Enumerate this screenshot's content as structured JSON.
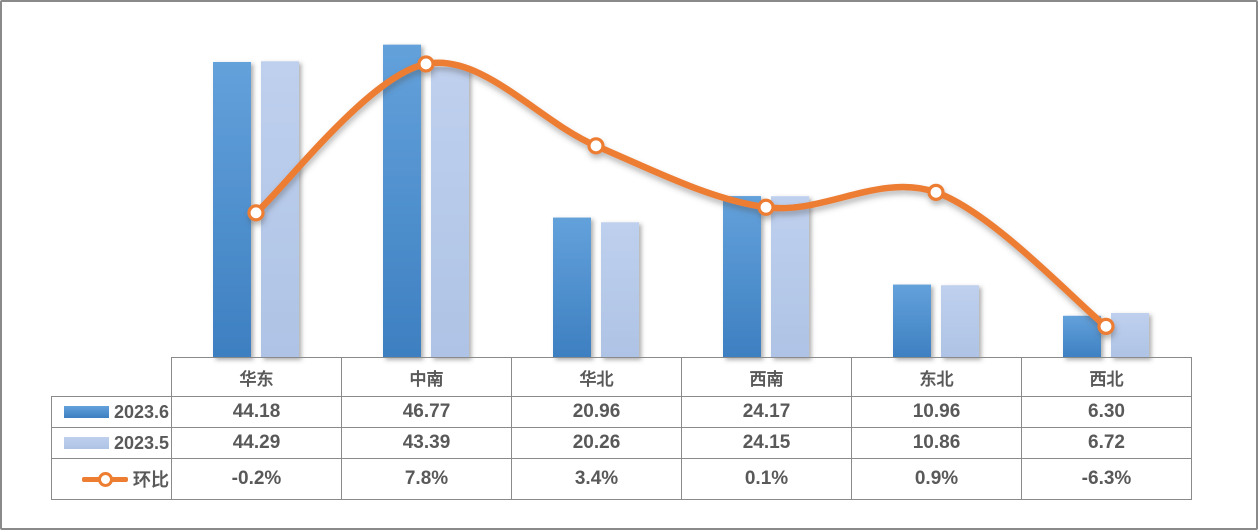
{
  "chart_data": {
    "type": "combo (clustered bar + smooth line, secondary axis)",
    "title": "",
    "categories": [
      "华东",
      "中南",
      "华北",
      "西南",
      "东北",
      "西北"
    ],
    "series": [
      {
        "name": "2023.6",
        "type": "bar",
        "axis": "primary",
        "values": [
          44.18,
          46.77,
          20.96,
          24.17,
          10.96,
          6.3
        ],
        "display": [
          "44.18",
          "46.77",
          "20.96",
          "24.17",
          "10.96",
          "6.30"
        ],
        "color_top": "#63A1DB",
        "color_bottom": "#3D7FC1"
      },
      {
        "name": "2023.5",
        "type": "bar",
        "axis": "primary",
        "values": [
          44.29,
          43.39,
          20.26,
          24.15,
          10.86,
          6.72
        ],
        "display": [
          "44.29",
          "43.39",
          "20.26",
          "24.15",
          "10.86",
          "6.72"
        ],
        "color_top": "#BFD0EE",
        "color_bottom": "#AEC3E5"
      },
      {
        "name": "环比",
        "type": "line",
        "axis": "secondary",
        "values": [
          -0.2,
          7.8,
          3.4,
          0.1,
          0.9,
          -6.3
        ],
        "display": [
          "-0.2%",
          "7.8%",
          "3.4%",
          "0.1%",
          "0.9%",
          "-6.3%"
        ],
        "color": "#ED7D31",
        "marker_fill": "#FFFFFF",
        "marker_stroke": "#ED7D31",
        "smooth": true
      }
    ],
    "primary_axis": {
      "min": 0,
      "max": 50,
      "labels_visible": false
    },
    "secondary_axis": {
      "min": -8,
      "max": 10,
      "unit": "%",
      "labels_visible": false
    },
    "gridlines": false,
    "legend_position": "data-table-left-keys",
    "colors": {
      "table_border": "#8A8A8A",
      "table_text": "#595959",
      "frame_border": "#8A8A8A",
      "background": "#FFFFFF"
    }
  }
}
